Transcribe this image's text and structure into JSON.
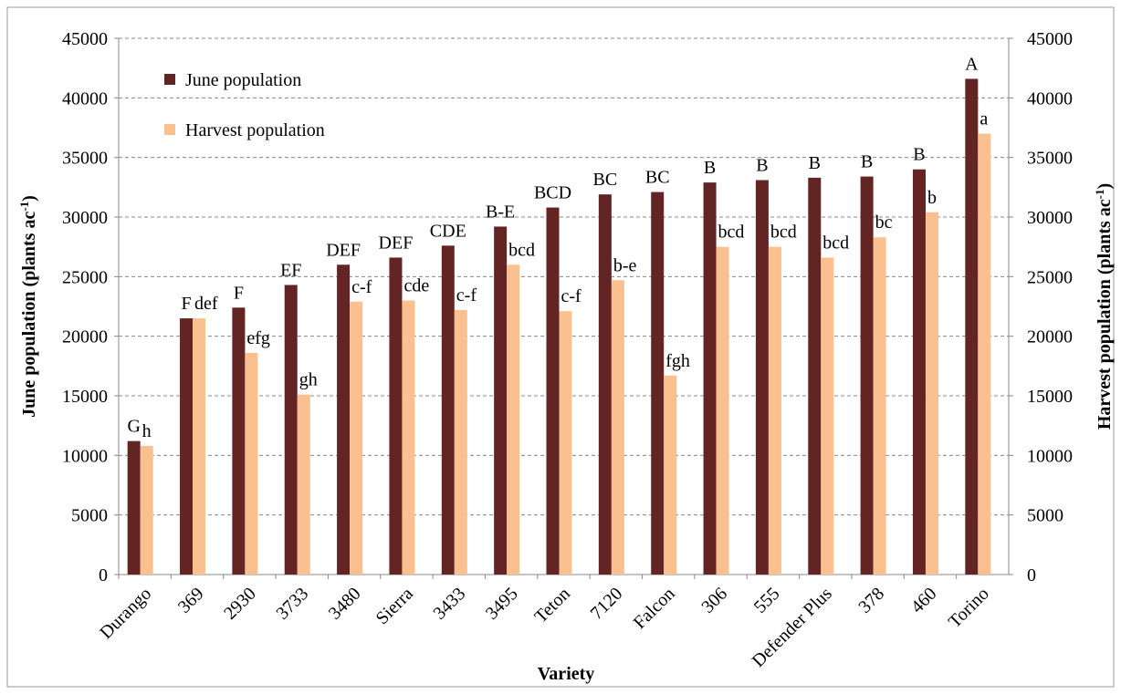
{
  "chart_data": {
    "type": "bar",
    "x_label": "Variety",
    "y_label": {
      "text": "June population (plants ac",
      "sup": "-1",
      "end": ")"
    },
    "y2_label": {
      "text": "Harvest population (plants ac",
      "sup": "-1",
      "end": ")"
    },
    "categories": [
      "Durango",
      "369",
      "2930",
      "3733",
      "3480",
      "Sierra",
      "3433",
      "3495",
      "Teton",
      "7120",
      "Falcon",
      "306",
      "555",
      "Defender Plus",
      "378",
      "460",
      "Torino"
    ],
    "series": [
      {
        "name": "June population",
        "color": "#632523",
        "axis": "y",
        "values": [
          11200,
          21500,
          22400,
          24300,
          26000,
          26600,
          27600,
          29200,
          30800,
          31900,
          32100,
          32900,
          33100,
          33300,
          33400,
          34000,
          41600
        ],
        "annotations": [
          "G",
          "F",
          "F",
          "EF",
          "DEF",
          "DEF",
          "CDE",
          "B-E",
          "BCD",
          "BC",
          "BC",
          "B",
          "B",
          "B",
          "B",
          "B",
          "A"
        ]
      },
      {
        "name": "Harvest population",
        "color": "#fac090",
        "axis": "y2",
        "values": [
          10800,
          21500,
          18600,
          15100,
          22900,
          23000,
          22200,
          26000,
          22100,
          24700,
          16700,
          27500,
          27500,
          26600,
          28300,
          30400,
          37000
        ],
        "annotations": [
          "h",
          "def",
          "efg",
          "gh",
          "c-f",
          "cde",
          "c-f",
          "bcd",
          "c-f",
          "b-e",
          "fgh",
          "bcd",
          "bcd",
          "bcd",
          "bc",
          "b",
          "a"
        ]
      }
    ],
    "ylim": [
      0,
      45000
    ],
    "yticks": [
      0,
      5000,
      10000,
      15000,
      20000,
      25000,
      30000,
      35000,
      40000,
      45000
    ],
    "y2lim": [
      0,
      45000
    ],
    "y2ticks": [
      0,
      5000,
      10000,
      15000,
      20000,
      25000,
      30000,
      35000,
      40000,
      45000
    ],
    "grid": true,
    "legend": "top-left"
  }
}
